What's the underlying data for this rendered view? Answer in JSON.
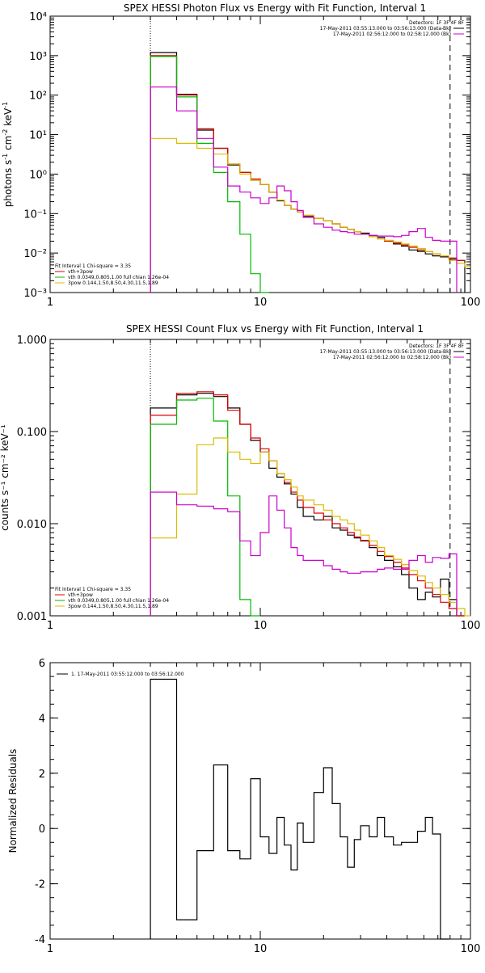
{
  "panel1": {
    "title": "SPEX HESSI Photon Flux vs Energy with Fit Function, Interval 1",
    "ylabel_parts": [
      "photons s",
      "-1",
      " cm",
      "-2",
      " keV",
      "-1"
    ],
    "detectors": "Detectors: 1F 3F 4F 8F",
    "legend_right": [
      {
        "text": "17-May-2011 03:55:13.000 to 03:56:13.000 (Data-Bk)",
        "color": "#000000"
      },
      {
        "text": "17-May-2011 02:56:12.000 to 02:58:12.000 (Bk)",
        "color": "#cc00cc"
      }
    ],
    "fit_title": "Fit Interval 1   Chi-square = 3.35",
    "legend_left": [
      {
        "text": "vth+3pow",
        "color": "#dd0000"
      },
      {
        "text": "vth 0.0349,0.805,1.00  full chian 1.26e-04",
        "color": "#00bb00"
      },
      {
        "text": "3pow 0.144,1.50,8.50,4.30,11.5,1.89",
        "color": "#ddbb00"
      }
    ]
  },
  "panel2": {
    "title": "SPEX HESSI Count Flux vs Energy with Fit Function, Interval 1",
    "ylabel": "counts s⁻¹ cm⁻² keV⁻¹",
    "detectors": "Detectors: 1F 3F 4F 8F",
    "legend_right": [
      {
        "text": "17-May-2011 03:55:13.000 to 03:56:13.000 (Data-Bk)",
        "color": "#000000"
      },
      {
        "text": "17-May-2011 02:56:12.000 to 02:58:12.000 (Bk)",
        "color": "#cc00cc"
      }
    ],
    "fit_title": "Fit Interval 1   Chi-square = 3.35",
    "legend_left": [
      {
        "text": "vth+3pow",
        "color": "#dd0000"
      },
      {
        "text": "vth 0.0349,0.805,1.00  full chian 1.26e-04",
        "color": "#00bb00"
      },
      {
        "text": "3pow 0.144,1.50,8.50,4.30,11.5,1.89",
        "color": "#ddbb00"
      }
    ]
  },
  "panel3": {
    "ylabel": "Normalized Residuals",
    "legend": "1. 17-May-2011 03:55:12.000 to 03:56:12.000"
  },
  "chart_data": [
    {
      "type": "line",
      "title": "SPEX HESSI Photon Flux vs Energy with Fit Function, Interval 1",
      "xlabel": "",
      "ylabel": "photons s-1 cm-2 keV-1",
      "xscale": "log",
      "yscale": "log",
      "xlim": [
        1,
        100
      ],
      "ylim": [
        0.001,
        10000
      ],
      "xticks": [
        "1",
        "10",
        "100"
      ],
      "yticks": [
        "10⁻³",
        "10⁻²",
        "10⁻¹",
        "10⁰",
        "10¹",
        "10²",
        "10³",
        "10⁴"
      ],
      "bin_edges": [
        3,
        4,
        5,
        6,
        7,
        8,
        9,
        10,
        11,
        12,
        13,
        14,
        15,
        16,
        18,
        20,
        22,
        24,
        26,
        28,
        30,
        33,
        36,
        39,
        43,
        47,
        51,
        56,
        61,
        66,
        72,
        79,
        86,
        94,
        103
      ],
      "vlines": [
        {
          "x": 3,
          "style": "dotted"
        },
        {
          "x": 80,
          "style": "dashed"
        }
      ],
      "series": [
        {
          "name": "17-May-2011 03:55:13.000 to 03:56:13.000 (Data-Bk)",
          "color": "#000000",
          "values": [
            1200,
            105,
            13,
            4.5,
            1.7,
            1.1,
            0.7,
            0.55,
            0.35,
            0.21,
            0.16,
            0.13,
            0.11,
            0.085,
            0.075,
            0.065,
            0.055,
            0.045,
            0.04,
            0.035,
            0.032,
            0.028,
            0.025,
            0.02,
            0.017,
            0.015,
            0.012,
            0.011,
            0.0095,
            0.0085,
            0.008,
            0.007,
            0.0065
          ]
        },
        {
          "name": "vth+3pow",
          "color": "#dd0000",
          "values": [
            1000,
            100,
            14,
            4.5,
            1.8,
            1.1,
            0.75,
            0.55,
            0.35,
            0.22,
            0.16,
            0.13,
            0.11,
            0.09,
            0.075,
            0.065,
            0.055,
            0.045,
            0.04,
            0.035,
            0.03,
            0.026,
            0.023,
            0.02,
            0.018,
            0.016,
            0.014,
            0.012,
            0.011,
            0.0095,
            0.0085,
            0.0075,
            0.0065
          ]
        },
        {
          "name": "vth",
          "color": "#00bb00",
          "values": [
            950,
            90,
            6,
            1.1,
            0.2,
            0.03,
            0.003,
            0.0003
          ]
        },
        {
          "name": "3pow",
          "color": "#ddbb00",
          "values": [
            8,
            6,
            4.5,
            3.2,
            1.8,
            1.0,
            0.7,
            0.55,
            0.35,
            0.22,
            0.16,
            0.13,
            0.11,
            0.09,
            0.075,
            0.065,
            0.055,
            0.045,
            0.04,
            0.035,
            0.03,
            0.026,
            0.023,
            0.021,
            0.019,
            0.017,
            0.015,
            0.013,
            0.011,
            0.0095,
            0.0085,
            0.0065,
            0.0055,
            0.0045
          ]
        },
        {
          "name": "17-May-2011 02:56:12.000 to 02:58:12.000 (Bk)",
          "color": "#cc00cc",
          "values": [
            160,
            40,
            8,
            1.5,
            0.5,
            0.35,
            0.25,
            0.18,
            0.25,
            0.5,
            0.38,
            0.2,
            0.12,
            0.08,
            0.055,
            0.045,
            0.038,
            0.035,
            0.033,
            0.03,
            0.03,
            0.028,
            0.027,
            0.027,
            0.026,
            0.028,
            0.035,
            0.042,
            0.025,
            0.021,
            0.02,
            0.02
          ]
        }
      ]
    },
    {
      "type": "line",
      "title": "SPEX HESSI Count Flux vs Energy with Fit Function, Interval 1",
      "xlabel": "",
      "ylabel": "counts s-1 cm-2 keV-1",
      "xscale": "log",
      "yscale": "log",
      "xlim": [
        1,
        100
      ],
      "ylim": [
        0.001,
        1.0
      ],
      "xticks": [
        "1",
        "10",
        "100"
      ],
      "yticks": [
        "0.001",
        "0.010",
        "0.100",
        "1.000"
      ],
      "bin_edges": [
        3,
        4,
        5,
        6,
        7,
        8,
        9,
        10,
        11,
        12,
        13,
        14,
        15,
        16,
        18,
        20,
        22,
        24,
        26,
        28,
        30,
        33,
        36,
        39,
        43,
        47,
        51,
        56,
        61,
        66,
        72,
        79,
        86,
        94,
        103
      ],
      "vlines": [
        {
          "x": 3,
          "style": "dotted"
        },
        {
          "x": 80,
          "style": "dashed"
        }
      ],
      "series": [
        {
          "name": "17-May-2011 03:55:13.000 to 03:56:13.000 (Data-Bk)",
          "color": "#000000",
          "values": [
            0.18,
            0.25,
            0.26,
            0.24,
            0.18,
            0.12,
            0.08,
            0.06,
            0.04,
            0.032,
            0.027,
            0.021,
            0.015,
            0.012,
            0.011,
            0.012,
            0.009,
            0.0085,
            0.0075,
            0.007,
            0.0065,
            0.0055,
            0.0045,
            0.004,
            0.0034,
            0.0028,
            0.002,
            0.0015,
            0.0018,
            0.0016,
            0.0025,
            0.0015,
            0.001
          ]
        },
        {
          "name": "vth+3pow",
          "color": "#dd0000",
          "values": [
            0.15,
            0.26,
            0.27,
            0.25,
            0.17,
            0.12,
            0.085,
            0.065,
            0.048,
            0.035,
            0.028,
            0.022,
            0.018,
            0.015,
            0.013,
            0.011,
            0.01,
            0.009,
            0.008,
            0.0072,
            0.0066,
            0.0058,
            0.005,
            0.0044,
            0.0038,
            0.0033,
            0.0028,
            0.0024,
            0.002,
            0.0017,
            0.0014,
            0.0012,
            0.001
          ]
        },
        {
          "name": "vth",
          "color": "#00bb00",
          "values": [
            0.12,
            0.22,
            0.23,
            0.13,
            0.02,
            0.0015,
            0.0001
          ]
        },
        {
          "name": "3pow",
          "color": "#ddbb00",
          "values": [
            0.007,
            0.021,
            0.072,
            0.085,
            0.06,
            0.05,
            0.045,
            0.06,
            0.048,
            0.035,
            0.03,
            0.025,
            0.02,
            0.018,
            0.016,
            0.014,
            0.012,
            0.011,
            0.01,
            0.0085,
            0.0075,
            0.0065,
            0.0055,
            0.0045,
            0.0041,
            0.0036,
            0.0031,
            0.0027,
            0.0023,
            0.002,
            0.0017,
            0.0014,
            0.0012,
            0.001
          ]
        },
        {
          "name": "17-May-2011 02:56:12.000 to 02:58:12.000 (Bk)",
          "color": "#cc00cc",
          "values": [
            0.022,
            0.016,
            0.0155,
            0.0145,
            0.0135,
            0.0065,
            0.0045,
            0.008,
            0.02,
            0.014,
            0.009,
            0.0055,
            0.0045,
            0.004,
            0.004,
            0.0035,
            0.0032,
            0.003,
            0.0029,
            0.0029,
            0.003,
            0.003,
            0.0032,
            0.0033,
            0.0032,
            0.0032,
            0.004,
            0.0045,
            0.0038,
            0.0043,
            0.0042,
            0.0047
          ]
        }
      ]
    },
    {
      "type": "line",
      "title": "",
      "xlabel": "",
      "ylabel": "Normalized Residuals",
      "xscale": "log",
      "yscale": "linear",
      "xlim": [
        1,
        100
      ],
      "ylim": [
        -4,
        6
      ],
      "xticks": [
        "1",
        "10",
        "100"
      ],
      "yticks": [
        "-4",
        "-2",
        "0",
        "2",
        "4",
        "6"
      ],
      "bin_edges": [
        3,
        4,
        5,
        6,
        7,
        8,
        9,
        10,
        11,
        12,
        13,
        14,
        15,
        16,
        18,
        20,
        22,
        24,
        26,
        28,
        30,
        33,
        36,
        39,
        43,
        47,
        51,
        56,
        61,
        66,
        72,
        79
      ],
      "series": [
        {
          "name": "1. 17-May-2011 03:55:12.000 to 03:56:12.000",
          "color": "#000000",
          "values": [
            5.4,
            -3.3,
            -0.8,
            2.3,
            -0.8,
            -1.1,
            1.8,
            -0.3,
            -0.9,
            0.4,
            -0.6,
            -1.5,
            0.2,
            -0.5,
            1.3,
            2.2,
            0.9,
            -0.3,
            -1.4,
            -0.4,
            0.1,
            -0.3,
            0.4,
            -0.3,
            -0.6,
            -0.5,
            -0.5,
            -0.1,
            0.4,
            -0.2,
            -4.0
          ]
        }
      ]
    }
  ]
}
